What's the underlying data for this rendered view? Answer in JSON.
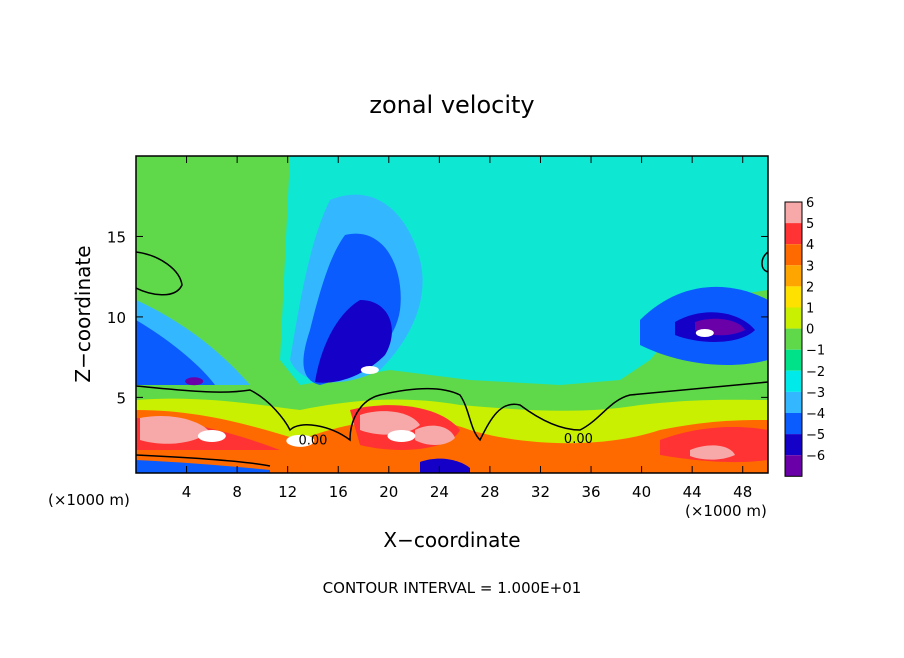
{
  "chart_data": {
    "type": "heatmap",
    "title": "zonal velocity",
    "xlabel": "X−coordinate",
    "ylabel": "Z−coordinate",
    "x_unit_left": "(×1000 m)",
    "x_unit_right": "(×1000 m)",
    "footer": "CONTOUR INTERVAL = 1.000E+01",
    "xlim": [
      0,
      50
    ],
    "ylim": [
      0.3,
      20
    ],
    "x_ticks": [
      4,
      8,
      12,
      16,
      20,
      24,
      28,
      32,
      36,
      40,
      44,
      48
    ],
    "x_tick_labels": [
      "4",
      "8",
      "12",
      "16",
      "20",
      "24",
      "28",
      "32",
      "36",
      "40",
      "44",
      "48"
    ],
    "y_ticks": [
      5,
      10,
      15
    ],
    "y_tick_labels": [
      "5",
      "10",
      "15"
    ],
    "contour_labels": [
      {
        "text": "0.00",
        "x": 14,
        "z": 2.2
      },
      {
        "text": "0.00",
        "x": 35,
        "z": 2.3
      }
    ],
    "colorbar": {
      "levels": [
        6,
        5,
        4,
        3,
        2,
        1,
        0,
        -1,
        -2,
        -3,
        -4,
        -5,
        -6
      ],
      "level_labels": [
        "6",
        "5",
        "4",
        "3",
        "2",
        "1",
        "0",
        "−1",
        "−2",
        "−3",
        "−4",
        "−5",
        "−6"
      ],
      "colors": [
        "#f7a8a8",
        "#ff3333",
        "#ff6a00",
        "#ffa500",
        "#ffe100",
        "#c9f000",
        "#5fd94a",
        "#00e28a",
        "#00eaea",
        "#33b8ff",
        "#0a5cff",
        "#1500c8",
        "#6a00a8"
      ]
    },
    "features": [
      {
        "x": 13,
        "z": 2.3,
        "u": 6
      },
      {
        "x": 6,
        "z": 2.6,
        "u": 6
      },
      {
        "x": 21,
        "z": 2.6,
        "u": 6
      },
      {
        "x": 18.5,
        "z": 6.7,
        "u": -6
      },
      {
        "x": 45,
        "z": 9.0,
        "u": -6
      },
      {
        "x": 4.6,
        "z": 6.0,
        "u": -5
      },
      {
        "x": 2.0,
        "z": 12.5,
        "u": 0.5
      }
    ]
  }
}
